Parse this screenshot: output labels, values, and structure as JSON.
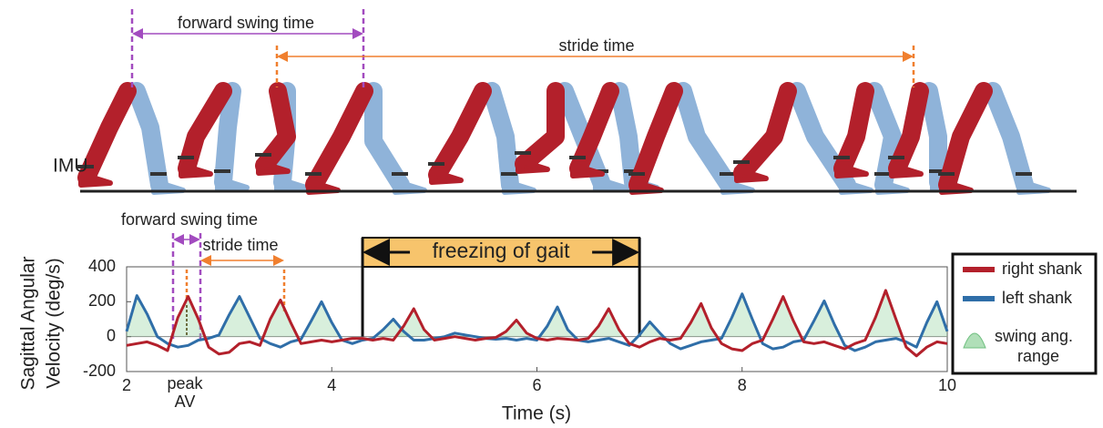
{
  "chart_data": {
    "type": "line",
    "xlabel": "Time (s)",
    "ylabel": [
      "Sagittal Angular",
      "Velocity (deg/s)"
    ],
    "xlim": [
      2,
      10
    ],
    "xticks": [
      2,
      4,
      6,
      8,
      10
    ],
    "ylim": [
      -200,
      400
    ],
    "yticks": [
      -200,
      0,
      200,
      400
    ],
    "x": [
      2,
      2.1,
      2.2,
      2.3,
      2.4,
      2.5,
      2.6,
      2.7,
      2.8,
      2.9,
      3,
      3.1,
      3.2,
      3.3,
      3.4,
      3.5,
      3.6,
      3.7,
      3.8,
      3.9,
      4,
      4.1,
      4.2,
      4.3,
      4.4,
      4.5,
      4.6,
      4.7,
      4.8,
      4.9,
      5,
      5.1,
      5.2,
      5.3,
      5.4,
      5.5,
      5.6,
      5.7,
      5.8,
      5.9,
      6,
      6.1,
      6.2,
      6.3,
      6.4,
      6.5,
      6.6,
      6.7,
      6.8,
      6.9,
      7,
      7.1,
      7.2,
      7.3,
      7.4,
      7.5,
      7.6,
      7.7,
      7.8,
      7.9,
      8,
      8.1,
      8.2,
      8.3,
      8.4,
      8.5,
      8.6,
      8.7,
      8.8,
      8.9,
      9,
      9.1,
      9.2,
      9.3,
      9.4,
      9.5,
      9.6,
      9.7,
      9.8,
      9.9,
      10
    ],
    "series": [
      {
        "name": "right shank",
        "color": "#b3202b",
        "values": [
          -50,
          -40,
          -30,
          -50,
          -80,
          110,
          230,
          100,
          -60,
          -100,
          -90,
          -40,
          -30,
          -50,
          100,
          210,
          80,
          -40,
          -30,
          -20,
          -30,
          -20,
          -10,
          -10,
          -20,
          -10,
          -20,
          60,
          160,
          40,
          -20,
          -10,
          0,
          -10,
          -20,
          -10,
          -5,
          30,
          95,
          20,
          -10,
          -20,
          -10,
          -15,
          -20,
          -10,
          60,
          160,
          40,
          -40,
          -60,
          -30,
          -10,
          -20,
          -10,
          80,
          190,
          50,
          -40,
          -70,
          -80,
          -40,
          -20,
          100,
          230,
          90,
          -30,
          -40,
          -30,
          -50,
          -70,
          -40,
          -20,
          110,
          265,
          100,
          -60,
          -110,
          -60,
          -30,
          -40
        ]
      },
      {
        "name": "left shank",
        "color": "#2f6ea8",
        "values": [
          30,
          235,
          130,
          0,
          -40,
          -60,
          -50,
          -20,
          -10,
          10,
          125,
          230,
          110,
          -10,
          -40,
          -60,
          -30,
          -15,
          90,
          200,
          80,
          -20,
          -40,
          -20,
          -10,
          40,
          100,
          30,
          -20,
          -20,
          -10,
          0,
          20,
          10,
          0,
          -10,
          -15,
          -10,
          -20,
          -10,
          -20,
          60,
          170,
          40,
          -20,
          -30,
          -20,
          -10,
          -30,
          -50,
          10,
          85,
          20,
          -40,
          -70,
          -50,
          -30,
          -20,
          -10,
          110,
          245,
          100,
          -40,
          -70,
          -60,
          -30,
          -20,
          90,
          205,
          70,
          -50,
          -80,
          -60,
          -30,
          -20,
          -10,
          -30,
          -60,
          80,
          200,
          30
        ]
      }
    ],
    "fill_color": "#8fd19a",
    "swing_label": [
      "swing ang.",
      "range"
    ],
    "freezing": {
      "label": "freezing of gait",
      "start": 4.3,
      "end": 7.0,
      "color": "#f7c46c"
    },
    "annotations": {
      "top_swing": "forward swing time",
      "top_stride": "stride time",
      "imu": "IMU",
      "plot_swing": "forward swing time",
      "plot_stride": "stride time",
      "peak": [
        "peak",
        "AV"
      ]
    }
  }
}
